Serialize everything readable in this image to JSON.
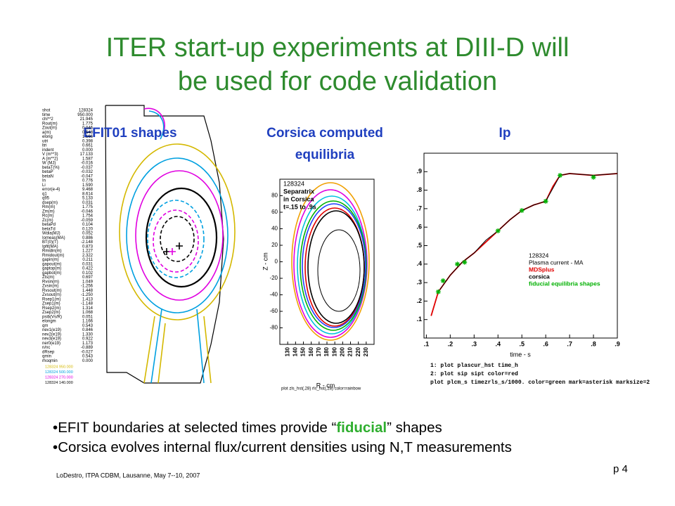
{
  "title": [
    "ITER start-up experiments at DIII-D will",
    "be used for code validation"
  ],
  "panels": {
    "efit": {
      "caption": "EFIT01 shapes",
      "parameters": [
        [
          "shot",
          "128324"
        ],
        [
          "time",
          "950.000"
        ],
        [
          "chi**2",
          "21.945"
        ],
        [
          "Rout(m)",
          "1.775"
        ],
        [
          "Zout(m)",
          "0.046"
        ],
        [
          "a(m)",
          "0.548"
        ],
        [
          "elong",
          "1.166"
        ],
        [
          "utri",
          "0.398"
        ],
        [
          "ltri",
          "0.661"
        ],
        [
          "indent",
          "0.000"
        ],
        [
          "V (m**3)",
          "17.133"
        ],
        [
          "A (m**2)",
          "1.587"
        ],
        [
          "W (MJ)",
          "-0.016"
        ],
        [
          "betaT(%)",
          "-0.037"
        ],
        [
          "betaP",
          "-0.032"
        ],
        [
          "betaN",
          "-0.047"
        ],
        [
          "In",
          "0.776"
        ],
        [
          "Li",
          "1.590"
        ],
        [
          "error(e-4)",
          "9.468"
        ],
        [
          "q1",
          "8.614"
        ],
        [
          "q95",
          "5.133"
        ],
        [
          "dsep(m)",
          "0.031"
        ],
        [
          "Rm(m)",
          "1.775"
        ],
        [
          "Zm(m)",
          "-0.046"
        ],
        [
          "Rc(m)",
          "1.754"
        ],
        [
          "Zc(m)",
          "-0.059"
        ],
        [
          "betaPd",
          "0.104"
        ],
        [
          "betaTd",
          "0.120"
        ],
        [
          "Wdia(MJ)",
          "0.052"
        ],
        [
          "Iomeas(MA)",
          "0.886"
        ],
        [
          "BT(0)(T)",
          "-2.148"
        ],
        [
          "Ipfit(MA)",
          "0.873"
        ],
        [
          "Rmidin(m)",
          "1.227"
        ],
        [
          "Rmidout(m)",
          "2.322"
        ],
        [
          "gapin(m)",
          "0.211"
        ],
        [
          "gapout(m)",
          "0.031"
        ],
        [
          "gaptop(m)",
          "0.422"
        ],
        [
          "gapbot(m)",
          "0.102"
        ],
        [
          "Zts(m)",
          "0.697"
        ],
        [
          "Rvsin(m)",
          "1.049"
        ],
        [
          "Zvsin(m)",
          "-1.256"
        ],
        [
          "Rvsout(m)",
          "1.448"
        ],
        [
          "Zvsout(m)",
          "-1.250"
        ],
        [
          "Rsep1(m)",
          "1.413"
        ],
        [
          "Zsep1(m)",
          "-1.148"
        ],
        [
          "Rsep2(m)",
          "1.314"
        ],
        [
          "Zsep2(m)",
          "1.068"
        ],
        [
          "psib(Vs/R)",
          "0.051"
        ],
        [
          "elongm",
          "1.166"
        ],
        [
          "qm",
          "0.543"
        ],
        [
          "nev1(e19)",
          "0.846"
        ],
        [
          "nev2(e19)",
          "1.330"
        ],
        [
          "nev3(e19)",
          "0.922"
        ],
        [
          "ner0(e19)",
          "1.173"
        ],
        [
          "n/nc",
          "-0.889"
        ],
        [
          "dRsep",
          "-0.027"
        ],
        [
          "qmin",
          "0.543"
        ],
        [
          "rhoqmin",
          "0.000"
        ]
      ],
      "legend": [
        {
          "text": "128324 950.000",
          "color": "#d4b800"
        },
        {
          "text": "128324 500.000",
          "color": "#00a0e0"
        },
        {
          "text": "128324 270.000",
          "color": "#e000e0"
        },
        {
          "text": "128324 140.000",
          "color": "#000000"
        }
      ]
    },
    "corsica": {
      "caption": [
        "Corsica computed",
        "equilibria"
      ],
      "annotation": [
        "128324",
        "Separatrix",
        "in Corsica",
        "t=.15 to .9s"
      ],
      "ylabel": "Z - cm",
      "xlabel": "R - cm",
      "ylim": [
        -100,
        100
      ],
      "yticks": [
        80,
        60,
        40,
        20,
        0,
        -20,
        -40,
        -60,
        -80
      ],
      "xlim": [
        120,
        240
      ],
      "xticks": [
        130,
        140,
        150,
        160,
        170,
        180,
        190,
        200,
        210,
        220,
        230
      ],
      "command": "plot zls_hst(,28) rls_hst(,28) color=rainbow"
    },
    "ip": {
      "caption": "Ip",
      "xlim": [
        0.09,
        0.9
      ],
      "ylim": [
        0,
        1
      ],
      "xticks": [
        {
          "value": 0.1,
          "label": ".1"
        },
        {
          "value": 0.2,
          "label": ".2"
        },
        {
          "value": 0.3,
          "label": ".3"
        },
        {
          "value": 0.4,
          "label": ".4"
        },
        {
          "value": 0.5,
          "label": ".5"
        },
        {
          "value": 0.6,
          "label": ".6"
        },
        {
          "value": 0.7,
          "label": ".7"
        },
        {
          "value": 0.8,
          "label": ".8"
        },
        {
          "value": 0.9,
          "label": ".9"
        }
      ],
      "yticks": [
        {
          "value": 0.1,
          "label": ".1"
        },
        {
          "value": 0.2,
          "label": ".2"
        },
        {
          "value": 0.3,
          "label": ".3"
        },
        {
          "value": 0.4,
          "label": ".4"
        },
        {
          "value": 0.5,
          "label": ".5"
        },
        {
          "value": 0.6,
          "label": ".6"
        },
        {
          "value": 0.7,
          "label": ".7"
        },
        {
          "value": 0.8,
          "label": ".8"
        },
        {
          "value": 0.9,
          "label": ".9"
        }
      ],
      "xlabel": "time - s",
      "legend_title": [
        "128324",
        "Plasma current - MA"
      ],
      "series": [
        {
          "name": "MDSplus",
          "color": "#e00000",
          "x": [
            0.12,
            0.15,
            0.2,
            0.25,
            0.3,
            0.35,
            0.4,
            0.45,
            0.5,
            0.55,
            0.6,
            0.63,
            0.66,
            0.7,
            0.8,
            0.9
          ],
          "y": [
            0.12,
            0.25,
            0.34,
            0.41,
            0.46,
            0.52,
            0.58,
            0.64,
            0.69,
            0.72,
            0.74,
            0.82,
            0.88,
            0.89,
            0.88,
            0.89
          ]
        },
        {
          "name": "corsica",
          "color": "#000000",
          "x": [
            0.15,
            0.2,
            0.25,
            0.3,
            0.35,
            0.4,
            0.45,
            0.5,
            0.55,
            0.6,
            0.66,
            0.7,
            0.8,
            0.9
          ],
          "y": [
            0.25,
            0.34,
            0.41,
            0.46,
            0.53,
            0.58,
            0.64,
            0.69,
            0.72,
            0.74,
            0.88,
            0.89,
            0.88,
            0.89
          ]
        },
        {
          "name": "fiducial equilibria shapes",
          "color": "#00b000",
          "x": [
            0.15,
            0.17,
            0.23,
            0.26,
            0.4,
            0.5,
            0.6,
            0.66,
            0.8
          ],
          "y": [
            0.25,
            0.31,
            0.4,
            0.41,
            0.58,
            0.69,
            0.74,
            0.88,
            0.87
          ]
        }
      ],
      "commands": [
        "1: plot plascur_hst time_h",
        "2: plot sip sipt color=red",
        "plot plcm_s timezrls_s/1000. color=green mark=asterisk marksize=2"
      ]
    }
  },
  "bullets": [
    [
      "EFIT boundaries at selected times provide “",
      "fiducial",
      "” shapes"
    ],
    [
      "Corsica evolves internal flux/current densities using N,T measurements"
    ]
  ],
  "footer": {
    "credit": "LoDestro, ITPA CDBM, Lausanne, May 7--10, 2007",
    "page": "p 4"
  }
}
